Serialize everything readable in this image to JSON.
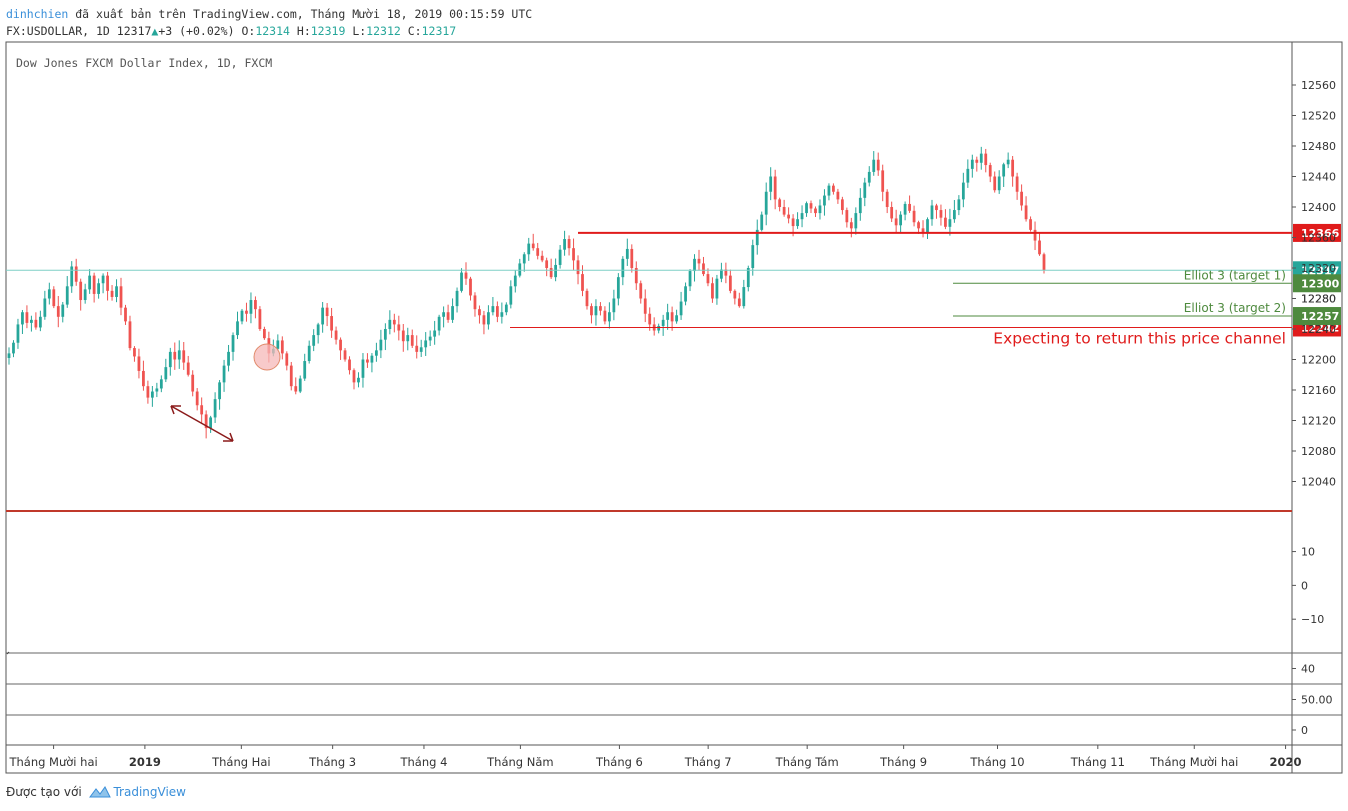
{
  "header": {
    "author": "dinhchien",
    "published_text": "đã xuất bản trên TradingView.com, Tháng Mười 18, 2019 00:15:59 UTC",
    "symbol": "FX:USDOLLAR, 1D",
    "last": "12317",
    "change": "+3 (+0.02%)",
    "o_label": "O:",
    "o": "12314",
    "h_label": "H:",
    "h": "12319",
    "l_label": "L:",
    "l": "12312",
    "c_label": "C:",
    "c": "12317"
  },
  "footer": {
    "made_with": "Được tạo với",
    "brand": "TradingView"
  },
  "colors": {
    "up": "#26a69a",
    "down": "#ef5350",
    "resistance": "#e01b1b",
    "target": "#4e8a3e",
    "last_price": "#26a69a",
    "annotation": "#e01b1b",
    "arrow": "#8b1a1a",
    "highlight_fill": "#f6b8b8"
  },
  "chart_data": {
    "type": "candlestick",
    "title": "Dow Jones FXCM Dollar Index, 1D, FXCM",
    "ylim": [
      12000,
      12590
    ],
    "y_ticks": [
      12040,
      12080,
      12120,
      12160,
      12200,
      12240,
      12280,
      12320,
      12360,
      12400,
      12440,
      12480,
      12520,
      12560
    ],
    "y_tick_labels": [
      "12040",
      "12080",
      "12120",
      "12160",
      "12200",
      "12240",
      "12280",
      "12320",
      "12360",
      "12400",
      "12440",
      "12480",
      "12520",
      "12560"
    ],
    "x_labels": [
      "Tháng Mười hai",
      "2019",
      "Tháng Hai",
      "Tháng 3",
      "Tháng 4",
      "Tháng Năm",
      "Tháng 6",
      "Tháng 7",
      "Tháng Tám",
      "Tháng 9",
      "Tháng 10",
      "Tháng 11",
      "Tháng Mười hai",
      "2020"
    ],
    "x_label_positions": [
      0.037,
      0.108,
      0.183,
      0.254,
      0.325,
      0.4,
      0.477,
      0.546,
      0.623,
      0.698,
      0.771,
      0.849,
      0.924,
      0.995
    ],
    "closes": [
      12208,
      12222,
      12246,
      12262,
      12248,
      12252,
      12242,
      12256,
      12280,
      12292,
      12270,
      12256,
      12272,
      12296,
      12322,
      12302,
      12278,
      12292,
      12310,
      12286,
      12300,
      12310,
      12290,
      12282,
      12296,
      12268,
      12250,
      12215,
      12204,
      12185,
      12165,
      12150,
      12158,
      12162,
      12174,
      12190,
      12210,
      12200,
      12212,
      12196,
      12180,
      12158,
      12140,
      12128,
      12110,
      12124,
      12148,
      12170,
      12192,
      12210,
      12232,
      12250,
      12264,
      12260,
      12278,
      12266,
      12240,
      12228,
      12208,
      12214,
      12225,
      12208,
      12192,
      12165,
      12158,
      12175,
      12198,
      12218,
      12232,
      12246,
      12268,
      12257,
      12238,
      12226,
      12212,
      12200,
      12186,
      12170,
      12176,
      12200,
      12196,
      12205,
      12212,
      12226,
      12240,
      12252,
      12246,
      12238,
      12224,
      12232,
      12218,
      12210,
      12216,
      12225,
      12230,
      12238,
      12256,
      12262,
      12252,
      12270,
      12290,
      12314,
      12306,
      12284,
      12266,
      12258,
      12246,
      12262,
      12270,
      12256,
      12262,
      12272,
      12296,
      12310,
      12326,
      12338,
      12352,
      12346,
      12336,
      12330,
      12320,
      12308,
      12324,
      12344,
      12358,
      12346,
      12330,
      12312,
      12290,
      12270,
      12258,
      12270,
      12264,
      12250,
      12262,
      12280,
      12308,
      12332,
      12345,
      12320,
      12300,
      12280,
      12260,
      12246,
      12238,
      12244,
      12252,
      12262,
      12250,
      12258,
      12276,
      12296,
      12316,
      12332,
      12326,
      12312,
      12300,
      12280,
      12306,
      12318,
      12310,
      12290,
      12280,
      12270,
      12295,
      12320,
      12350,
      12370,
      12390,
      12420,
      12440,
      12410,
      12400,
      12390,
      12385,
      12375,
      12384,
      12392,
      12405,
      12398,
      12392,
      12402,
      12415,
      12428,
      12420,
      12410,
      12396,
      12380,
      12372,
      12392,
      12412,
      12432,
      12446,
      12462,
      12448,
      12420,
      12400,
      12385,
      12376,
      12390,
      12404,
      12395,
      12380,
      12372,
      12366,
      12384,
      12402,
      12396,
      12386,
      12374,
      12384,
      12396,
      12410,
      12432,
      12450,
      12462,
      12458,
      12470,
      12455,
      12440,
      12422,
      12440,
      12456,
      12462,
      12440,
      12420,
      12402,
      12384,
      12370,
      12356,
      12338,
      12317
    ],
    "resistance_level": 12366,
    "resistance_label": "12366",
    "support_level": 12242,
    "support_label": "12242",
    "target1_level": 12300,
    "target1_label": "12300",
    "target1_text": "Elliot 3 (target 1)",
    "target2_level": 12257,
    "target2_label": "12257",
    "target2_text": "Elliot 3 (target 2)",
    "last_price_level": 12317,
    "last_price_label": "12317",
    "annotation_text": "Expecting to return this price channel",
    "overlap_tick_label": "12280",
    "pane2": {
      "ylim": [
        -20,
        22
      ],
      "ticks": [
        10,
        0,
        -10
      ],
      "tick_labels": [
        "10",
        "0",
        "−10"
      ]
    },
    "pane3": {
      "ticks": [
        40
      ],
      "tick_labels": [
        "40"
      ]
    },
    "pane4": {
      "ticks": [
        50
      ],
      "tick_labels": [
        "50.00"
      ]
    },
    "pane5": {
      "ticks": [
        0
      ],
      "tick_labels": [
        "0"
      ]
    }
  }
}
